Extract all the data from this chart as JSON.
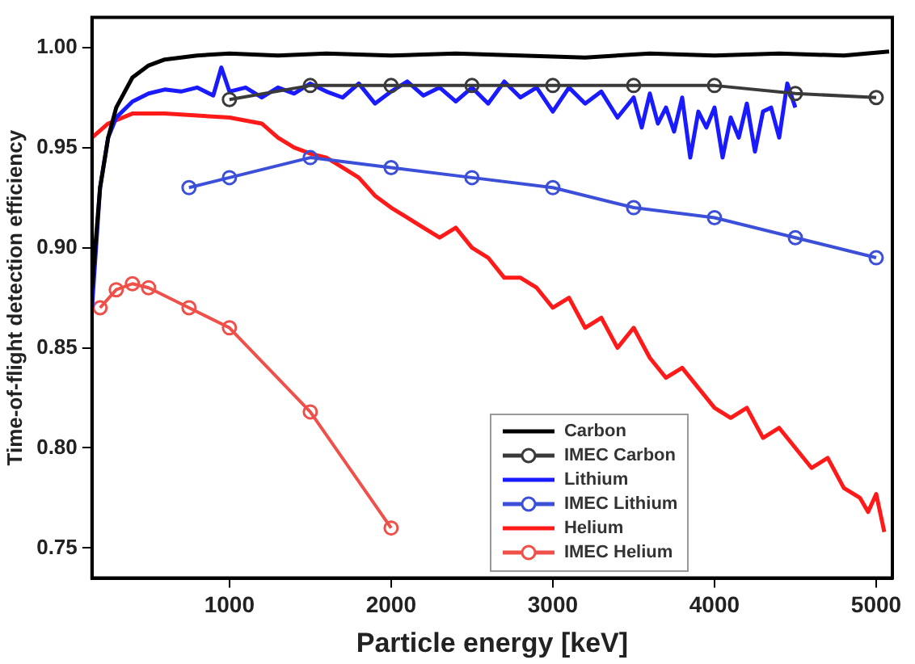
{
  "chart_data": {
    "type": "line",
    "xlabel": "Particle energy [keV]",
    "ylabel": "Time-of-flight detection efficiency",
    "xlim": [
      150,
      5100
    ],
    "xticks": [
      1000,
      2000,
      3000,
      4000,
      5000
    ],
    "ylim": [
      0.735,
      1.015
    ],
    "yticks": [
      {
        "value": 0.75,
        "label": "0.75"
      },
      {
        "value": 0.8,
        "label": "0.80"
      },
      {
        "value": 0.85,
        "label": "0.85"
      },
      {
        "value": 0.9,
        "label": "0.90"
      },
      {
        "value": 0.95,
        "label": "0.95"
      },
      {
        "value": 1,
        "label": "1.00"
      }
    ],
    "grid": false,
    "legend": "bottom",
    "series": [
      {
        "name": "Carbon",
        "color": "#000000",
        "marker": "none",
        "x": [
          150,
          200,
          250,
          300,
          400,
          500,
          600,
          800,
          1000,
          1300,
          1600,
          2000,
          2400,
          2800,
          3200,
          3600,
          4000,
          4400,
          4800,
          5080
        ],
        "values": [
          0.88,
          0.93,
          0.955,
          0.97,
          0.985,
          0.991,
          0.994,
          0.996,
          0.997,
          0.996,
          0.997,
          0.996,
          0.997,
          0.996,
          0.995,
          0.997,
          0.996,
          0.997,
          0.996,
          0.998
        ]
      },
      {
        "name": "IMEC Carbon",
        "color": "#3a3a3a",
        "marker": "circle",
        "x": [
          1000,
          1500,
          2000,
          2500,
          3000,
          3500,
          4000,
          4500,
          5000
        ],
        "values": [
          0.974,
          0.981,
          0.981,
          0.981,
          0.981,
          0.981,
          0.981,
          0.977,
          0.975
        ]
      },
      {
        "name": "Lithium",
        "color": "#1a1aff",
        "marker": "none",
        "x": [
          150,
          200,
          250,
          300,
          400,
          500,
          600,
          700,
          800,
          900,
          950,
          1000,
          1100,
          1200,
          1300,
          1400,
          1500,
          1600,
          1700,
          1800,
          1900,
          2000,
          2100,
          2200,
          2300,
          2400,
          2500,
          2600,
          2700,
          2800,
          2900,
          3000,
          3100,
          3200,
          3300,
          3400,
          3500,
          3550,
          3600,
          3650,
          3700,
          3750,
          3800,
          3850,
          3900,
          3950,
          4000,
          4050,
          4100,
          4150,
          4200,
          4250,
          4300,
          4350,
          4400,
          4450,
          4500
        ],
        "values": [
          0.87,
          0.93,
          0.955,
          0.965,
          0.973,
          0.977,
          0.979,
          0.978,
          0.98,
          0.976,
          0.99,
          0.978,
          0.98,
          0.975,
          0.98,
          0.977,
          0.982,
          0.978,
          0.975,
          0.982,
          0.972,
          0.978,
          0.983,
          0.976,
          0.98,
          0.973,
          0.98,
          0.972,
          0.983,
          0.975,
          0.98,
          0.968,
          0.98,
          0.972,
          0.978,
          0.965,
          0.975,
          0.96,
          0.977,
          0.962,
          0.97,
          0.958,
          0.975,
          0.945,
          0.968,
          0.96,
          0.97,
          0.945,
          0.965,
          0.955,
          0.972,
          0.948,
          0.968,
          0.97,
          0.955,
          0.982,
          0.97
        ]
      },
      {
        "name": "IMEC Lithium",
        "color": "#3b4fd9",
        "marker": "circle",
        "x": [
          750,
          1000,
          1500,
          2000,
          2500,
          3000,
          3500,
          4000,
          4500,
          5000
        ],
        "values": [
          0.93,
          0.935,
          0.945,
          0.94,
          0.935,
          0.93,
          0.92,
          0.915,
          0.905,
          0.895
        ]
      },
      {
        "name": "Helium",
        "color": "#ff1a1a",
        "marker": "none",
        "x": [
          150,
          250,
          400,
          600,
          800,
          1000,
          1200,
          1300,
          1400,
          1500,
          1600,
          1700,
          1800,
          1900,
          2000,
          2100,
          2200,
          2300,
          2400,
          2500,
          2600,
          2700,
          2800,
          2900,
          3000,
          3100,
          3200,
          3300,
          3400,
          3500,
          3600,
          3700,
          3800,
          3900,
          4000,
          4100,
          4200,
          4300,
          4400,
          4500,
          4600,
          4700,
          4800,
          4900,
          4950,
          5000,
          5050
        ],
        "values": [
          0.955,
          0.962,
          0.967,
          0.967,
          0.966,
          0.965,
          0.962,
          0.955,
          0.95,
          0.947,
          0.945,
          0.94,
          0.935,
          0.926,
          0.92,
          0.915,
          0.91,
          0.905,
          0.91,
          0.9,
          0.895,
          0.885,
          0.885,
          0.88,
          0.87,
          0.875,
          0.86,
          0.865,
          0.85,
          0.86,
          0.845,
          0.835,
          0.84,
          0.83,
          0.82,
          0.815,
          0.82,
          0.805,
          0.81,
          0.8,
          0.79,
          0.795,
          0.78,
          0.775,
          0.768,
          0.777,
          0.758
        ]
      },
      {
        "name": "IMEC Helium",
        "color": "#f0504a",
        "marker": "circle",
        "x": [
          200,
          300,
          400,
          500,
          750,
          1000,
          1500,
          2000
        ],
        "values": [
          0.87,
          0.879,
          0.882,
          0.88,
          0.87,
          0.86,
          0.818,
          0.76
        ]
      }
    ]
  }
}
